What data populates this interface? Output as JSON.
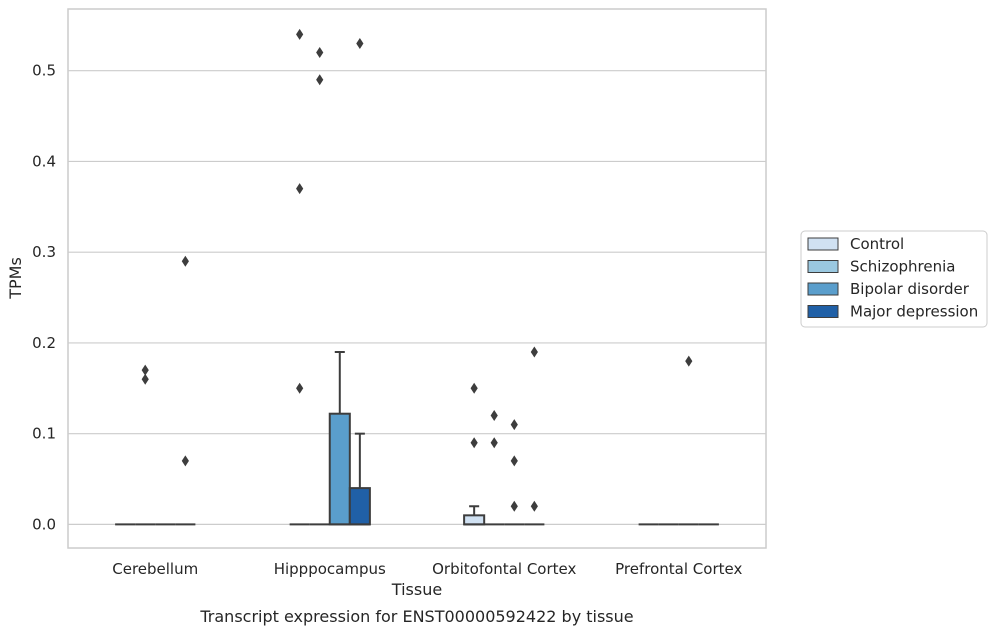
{
  "chart_data": {
    "type": "box",
    "xlabel": "Tissue",
    "ylabel": "TPMs",
    "caption": "Transcript expression for ENST00000592422 by tissue",
    "ylim": [
      -0.026,
      0.568
    ],
    "yticks": [
      "0.0",
      "0.1",
      "0.2",
      "0.3",
      "0.4",
      "0.5"
    ],
    "ytick_values": [
      0.0,
      0.1,
      0.2,
      0.3,
      0.4,
      0.5
    ],
    "grid": true,
    "legend_position": "right",
    "categories": [
      "Cerebellum",
      "Hipppocampus",
      "Orbitofontal Cortex",
      "Prefrontal Cortex"
    ],
    "series": [
      {
        "name": "Control",
        "color": "#d0e1f2",
        "boxes": [
          {
            "category": "Cerebellum",
            "q1": 0,
            "median": 0,
            "q3": 0,
            "whisker_low": 0,
            "whisker_high": 0,
            "outliers": []
          },
          {
            "category": "Hipppocampus",
            "q1": 0,
            "median": 0,
            "q3": 0,
            "whisker_low": 0,
            "whisker_high": 0,
            "outliers": [
              0.54,
              0.37,
              0.15
            ]
          },
          {
            "category": "Orbitofontal Cortex",
            "q1": 0,
            "median": 0,
            "q3": 0.01,
            "whisker_low": 0,
            "whisker_high": 0.02,
            "outliers": [
              0.15,
              0.09
            ]
          },
          {
            "category": "Prefrontal Cortex",
            "q1": 0,
            "median": 0,
            "q3": 0,
            "whisker_low": 0,
            "whisker_high": 0,
            "outliers": []
          }
        ]
      },
      {
        "name": "Schizophrenia",
        "color": "#9ac8e0",
        "boxes": [
          {
            "category": "Cerebellum",
            "q1": 0,
            "median": 0,
            "q3": 0,
            "whisker_low": 0,
            "whisker_high": 0,
            "outliers": [
              0.17,
              0.16
            ]
          },
          {
            "category": "Hipppocampus",
            "q1": 0,
            "median": 0,
            "q3": 0,
            "whisker_low": 0,
            "whisker_high": 0,
            "outliers": [
              0.52,
              0.49
            ]
          },
          {
            "category": "Orbitofontal Cortex",
            "q1": 0,
            "median": 0,
            "q3": 0,
            "whisker_low": 0,
            "whisker_high": 0,
            "outliers": [
              0.12,
              0.09
            ]
          },
          {
            "category": "Prefrontal Cortex",
            "q1": 0,
            "median": 0,
            "q3": 0,
            "whisker_low": 0,
            "whisker_high": 0,
            "outliers": []
          }
        ]
      },
      {
        "name": "Bipolar disorder",
        "color": "#5a9ecc",
        "boxes": [
          {
            "category": "Cerebellum",
            "q1": 0,
            "median": 0,
            "q3": 0,
            "whisker_low": 0,
            "whisker_high": 0,
            "outliers": []
          },
          {
            "category": "Hipppocampus",
            "q1": 0,
            "median": 0,
            "q3": 0.122,
            "whisker_low": 0,
            "whisker_high": 0.19,
            "outliers": []
          },
          {
            "category": "Orbitofontal Cortex",
            "q1": 0,
            "median": 0,
            "q3": 0,
            "whisker_low": 0,
            "whisker_high": 0,
            "outliers": [
              0.11,
              0.07,
              0.02
            ]
          },
          {
            "category": "Prefrontal Cortex",
            "q1": 0,
            "median": 0,
            "q3": 0,
            "whisker_low": 0,
            "whisker_high": 0,
            "outliers": [
              0.18
            ]
          }
        ]
      },
      {
        "name": "Major depression",
        "color": "#2060a7",
        "boxes": [
          {
            "category": "Cerebellum",
            "q1": 0,
            "median": 0,
            "q3": 0,
            "whisker_low": 0,
            "whisker_high": 0,
            "outliers": [
              0.29,
              0.07
            ]
          },
          {
            "category": "Hipppocampus",
            "q1": 0,
            "median": 0,
            "q3": 0.04,
            "whisker_low": 0,
            "whisker_high": 0.1,
            "outliers": [
              0.53
            ]
          },
          {
            "category": "Orbitofontal Cortex",
            "q1": 0,
            "median": 0,
            "q3": 0,
            "whisker_low": 0,
            "whisker_high": 0,
            "outliers": [
              0.19,
              0.02
            ]
          },
          {
            "category": "Prefrontal Cortex",
            "q1": 0,
            "median": 0,
            "q3": 0,
            "whisker_low": 0,
            "whisker_high": 0,
            "outliers": []
          }
        ]
      }
    ]
  }
}
